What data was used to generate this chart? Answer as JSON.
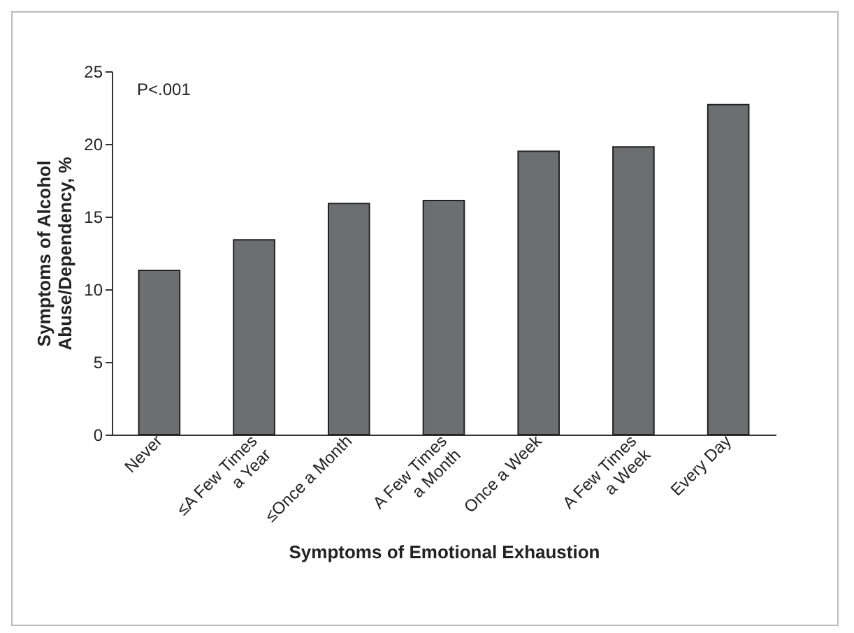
{
  "chart_data": {
    "type": "bar",
    "xlabel": "Symptoms of Emotional Exhaustion",
    "ylabel": "Symptoms of Alcohol\nAbuse/Dependency, %",
    "categories": [
      "Never",
      "≤A Few Times\na Year",
      "≤Once a Month",
      "A Few Times\na Month",
      "Once a Week",
      "A Few Times\na Week",
      "Every Day"
    ],
    "values": [
      11.3,
      13.4,
      15.9,
      16.1,
      19.5,
      19.8,
      22.7
    ],
    "color": "#6d6e70",
    "ylim": [
      0,
      25
    ],
    "yticks": [
      0,
      5,
      10,
      15,
      20,
      25
    ],
    "grid": false,
    "annotations": [
      "P<.001"
    ]
  }
}
